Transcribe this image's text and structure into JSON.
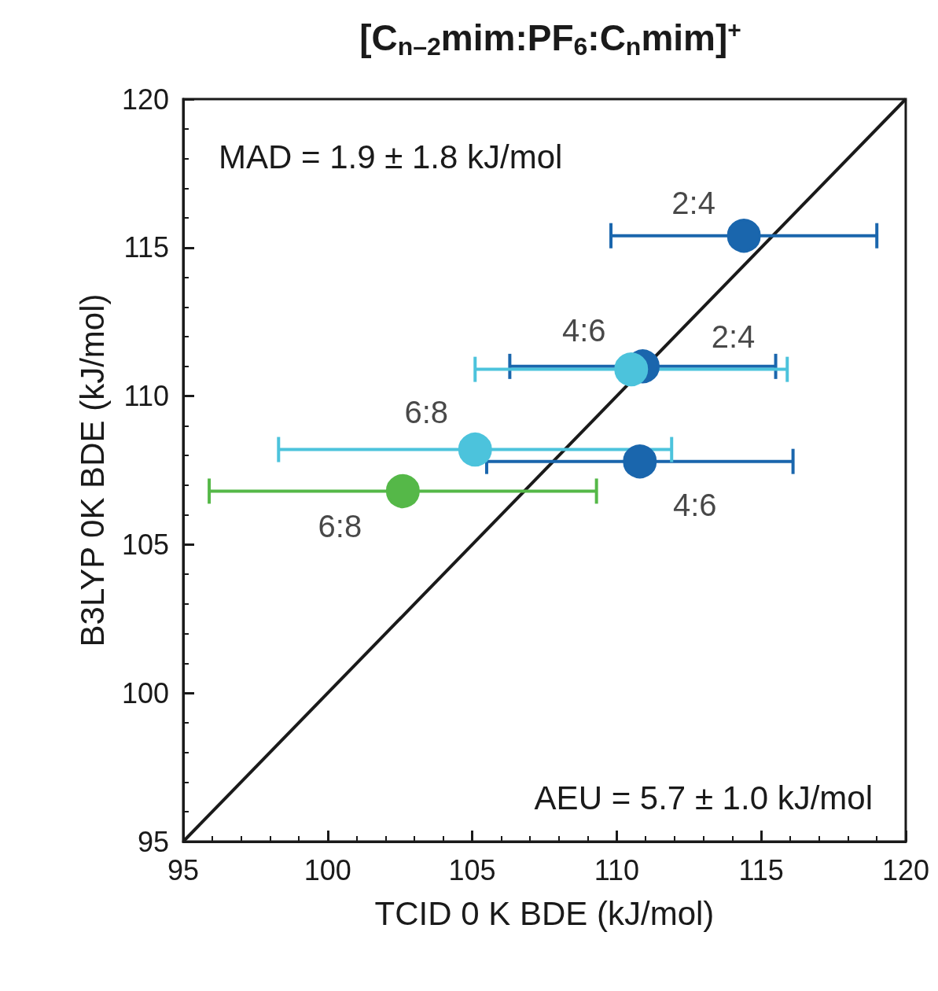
{
  "chart_data": {
    "type": "scatter",
    "title": "[C$_{n–2}$mim:PF$_{6}$:C$_{n}$mim]$^{+}$",
    "xlabel": "TCID 0 K BDE (kJ/mol)",
    "ylabel": "B3LYP 0K BDE (kJ/mol)",
    "xlim": [
      95,
      120
    ],
    "ylim": [
      95,
      120
    ],
    "xticks": [
      95,
      100,
      105,
      110,
      115,
      120
    ],
    "yticks": [
      95,
      100,
      105,
      110,
      115,
      120
    ],
    "grid": false,
    "marker": "circle",
    "series": [
      {
        "color": "#1a66ad",
        "x": [
          114.4,
          110.9,
          110.8
        ],
        "values": [
          115.4,
          111.0,
          107.8
        ],
        "xerrors": [
          4.6,
          4.6,
          5.3
        ]
      },
      {
        "color": "#4cc3dc",
        "x": [
          110.5,
          105.1
        ],
        "values": [
          110.9,
          108.2
        ],
        "xerrors": [
          5.4,
          6.8
        ]
      },
      {
        "color": "#55b848",
        "x": [
          102.6
        ],
        "values": [
          106.8
        ],
        "xerrors": [
          6.7
        ]
      },
      {
        "type": "line",
        "color": "#1a1a1a",
        "marker": "none",
        "x": [
          95,
          120
        ],
        "values": [
          95,
          120
        ]
      }
    ],
    "annotations": [
      "MAD = 1.9 ± 1.8 kJ/mol",
      "AEU = 5.7 ± 1.0 kJ/mol",
      {
        "text": "2:4",
        "x": 114.4,
        "y": 115.4
      },
      {
        "text": "2:4",
        "x": 110.9,
        "y": 111.0
      },
      {
        "text": "4:6",
        "x": 110.5,
        "y": 110.9
      },
      {
        "text": "6:8",
        "x": 105.1,
        "y": 108.2
      },
      {
        "text": "4:6",
        "x": 110.8,
        "y": 107.8
      },
      {
        "text": "6:8",
        "x": 102.6,
        "y": 106.8
      }
    ]
  }
}
